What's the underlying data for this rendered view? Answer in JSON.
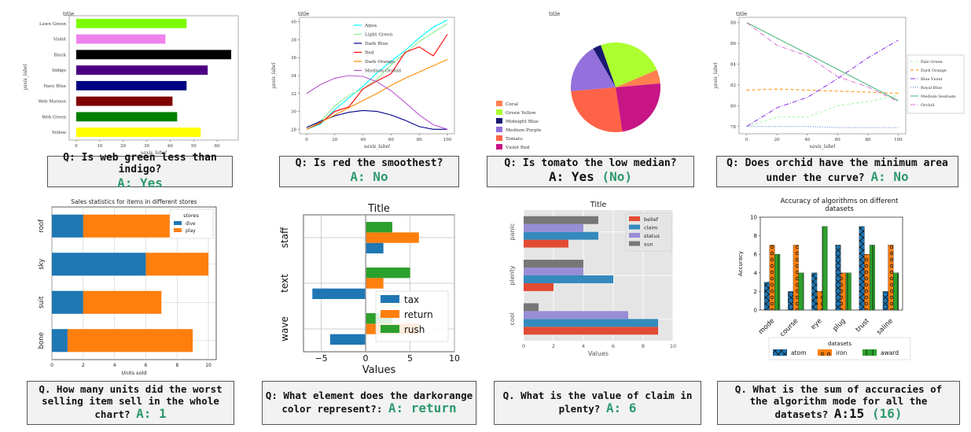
{
  "questions": [
    {
      "q": "Q: Is web green less than indigo?",
      "a": "A: Yes",
      "correction": ""
    },
    {
      "q": "Q: Is red the smoothest?",
      "a": "A: No",
      "correction": ""
    },
    {
      "q": "Q: Is tomato the low median?",
      "a": "A: Yes",
      "correction": "(No)"
    },
    {
      "q": "Q: Does orchid have the minimum area under the curve?",
      "q1": "Q: Does orchid have the minimum area",
      "q2": "under the curve?",
      "a": "A: No",
      "correction": ""
    },
    {
      "q1": "Q. How many units did the worst",
      "q2": "selling item sell in the whole",
      "q3": "chart?",
      "a": "A: 1",
      "correction": ""
    },
    {
      "q1": "Q:  What element does the darkorange",
      "q2": "color represent?:",
      "a": "A: return",
      "correction": ""
    },
    {
      "q1": "Q. What is the value of claim in",
      "q2": "plenty?",
      "a": "A: 6",
      "correction": ""
    },
    {
      "q1": "Q. What is the sum of accuracies of",
      "q2": "the algorithm mode for all the",
      "q3": "datasets?",
      "a": "A:15",
      "correction": "(16)"
    }
  ],
  "chart_data": [
    {
      "type": "bar",
      "orientation": "horizontal",
      "title": "title",
      "xlabel": "xaxis_label",
      "ylabel": "yaxis_label",
      "categories": [
        "Lawn Green",
        "Violet",
        "Black",
        "Indigo",
        "Navy Blue",
        "Web Maroon",
        "Web Green",
        "Yellow"
      ],
      "values": [
        47,
        38,
        66,
        56,
        47,
        41,
        43,
        53
      ],
      "colors": [
        "#7cfc00",
        "#ee82ee",
        "#000000",
        "#4b0082",
        "#000080",
        "#800000",
        "#008000",
        "#ffff00"
      ],
      "xlim": [
        -3,
        69
      ],
      "xticks": [
        "0",
        "10",
        "20",
        "30",
        "40",
        "50",
        "60"
      ]
    },
    {
      "type": "line",
      "title": "title",
      "xlabel": "xaxis_label",
      "ylabel": "yaxis_label",
      "x": [
        0,
        10,
        20,
        30,
        40,
        50,
        60,
        70,
        80,
        90,
        100
      ],
      "xlim": [
        -5,
        105
      ],
      "ylim": [
        27.5,
        40.5
      ],
      "xticks": [
        "0",
        "20",
        "40",
        "60",
        "80",
        "100"
      ],
      "yticks": [
        "28",
        "30",
        "32",
        "34",
        "36",
        "38",
        "40"
      ],
      "legend": "top-center",
      "series": [
        {
          "name": "Aqua",
          "color": "#00ffff",
          "values": [
            28,
            28.6,
            30.2,
            31.5,
            32.8,
            34.3,
            35.6,
            36.8,
            38.2,
            39.4,
            40.2
          ]
        },
        {
          "name": "Light Green",
          "color": "#90ee90",
          "values": [
            28.2,
            28.9,
            30.6,
            31.8,
            32.5,
            33.6,
            35.2,
            36.5,
            37.8,
            38.8,
            39.8
          ]
        },
        {
          "name": "Dark Blue",
          "color": "#00008b",
          "values": [
            28.2,
            28.9,
            29.5,
            29.9,
            30.1,
            30.0,
            29.6,
            29.0,
            28.3,
            28.0,
            28.0
          ]
        },
        {
          "name": "Red",
          "color": "#ff0000",
          "values": [
            28.0,
            28.7,
            30.0,
            30.5,
            32.5,
            33.4,
            34.2,
            36.6,
            37.2,
            36.2,
            38.6
          ]
        },
        {
          "name": "Dark Orange",
          "color": "#ff8c00",
          "values": [
            28.0,
            28.8,
            29.6,
            30.4,
            31.2,
            32.0,
            32.9,
            33.7,
            34.4,
            35.1,
            35.8
          ]
        },
        {
          "name": "Medium Orchid",
          "color": "#ba55d3",
          "values": [
            32.0,
            33.0,
            33.7,
            34.0,
            33.9,
            33.3,
            32.3,
            31.0,
            29.6,
            28.5,
            28.0
          ]
        }
      ]
    },
    {
      "type": "pie",
      "title": "title",
      "legend": "left",
      "labels": [
        "Coral",
        "Green Yellow",
        "Midnight Blue",
        "Medium Purple",
        "Tomato",
        "Violet Red"
      ],
      "values": [
        5,
        24,
        3,
        18,
        26,
        24
      ],
      "colors": [
        "#ff7f50",
        "#adff2f",
        "#191970",
        "#9370db",
        "#ff6347",
        "#c71585"
      ]
    },
    {
      "type": "line",
      "title": "title",
      "xlabel": "xaxis_label",
      "ylabel": "yaxis_label",
      "x": [
        0,
        20,
        40,
        60,
        80,
        100
      ],
      "xlim": [
        -5,
        105
      ],
      "ylim": [
        77.3,
        88.5
      ],
      "xticks": [
        "0",
        "20",
        "40",
        "60",
        "80",
        "100"
      ],
      "yticks": [
        "78",
        "80",
        "82",
        "84",
        "86",
        "88"
      ],
      "legend": "right",
      "series": [
        {
          "name": "Pale Green",
          "color": "#98fb98",
          "dash": "3,3",
          "values": [
            78.0,
            78.9,
            78.9,
            80.0,
            80.4,
            81.0
          ]
        },
        {
          "name": "Dark Orange",
          "color": "#ff8c00",
          "dash": "4,3",
          "values": [
            81.5,
            81.6,
            81.5,
            81.4,
            81.3,
            81.2
          ]
        },
        {
          "name": "Blue Violet",
          "color": "#8a2be2",
          "dash": "6,2,1,2",
          "values": [
            78.0,
            79.8,
            80.8,
            82.6,
            84.6,
            86.3
          ]
        },
        {
          "name": "Royal Blue",
          "color": "#4169e1",
          "dash": "1,2",
          "values": [
            78.0,
            78.0,
            78.0,
            77.9,
            77.9,
            77.9
          ]
        },
        {
          "name": "Medium Seafoam",
          "color": "#3cb371",
          "dash": "",
          "values": [
            88.0,
            86.5,
            85.0,
            83.5,
            82.0,
            80.5
          ]
        },
        {
          "name": "Orchid",
          "color": "#da70d6",
          "dash": "6,2,1,2",
          "values": [
            88.0,
            85.8,
            84.8,
            82.8,
            81.8,
            80.4
          ]
        }
      ]
    },
    {
      "type": "bar",
      "orientation": "horizontal",
      "stacked": true,
      "title": "Sales statistics for items in different stores",
      "xlabel": "Units sold",
      "ylabel": "",
      "categories": [
        "roof",
        "sky",
        "suit",
        "bone"
      ],
      "legend_title": "stores",
      "series": [
        {
          "name": "dive",
          "color": "#1f77b4",
          "values": [
            2,
            6,
            2,
            1
          ]
        },
        {
          "name": "play",
          "color": "#ff7f0e",
          "values": [
            6,
            4,
            5,
            8
          ]
        }
      ],
      "xlim": [
        0,
        10.5
      ],
      "xticks": [
        "0",
        "2",
        "4",
        "6",
        "8",
        "10"
      ]
    },
    {
      "type": "bar",
      "orientation": "horizontal",
      "title": "Title",
      "xlabel": "Values",
      "ylabel": "",
      "categories": [
        "staff",
        "text",
        "wave"
      ],
      "series": [
        {
          "name": "tax",
          "color": "#1f77b4",
          "values": [
            2,
            -6,
            -4
          ]
        },
        {
          "name": "return",
          "color": "#ff7f0e",
          "values": [
            6,
            2,
            6
          ]
        },
        {
          "name": "rush",
          "color": "#2ca02c",
          "values": [
            3,
            5,
            3
          ]
        }
      ],
      "xlim": [
        -7,
        10
      ],
      "xticks": [
        "−5",
        "0",
        "5",
        "10"
      ],
      "legend": "lower-right"
    },
    {
      "type": "bar",
      "orientation": "horizontal",
      "title": "Title",
      "xlabel": "Values",
      "ylabel": "",
      "categories": [
        "panic",
        "plenty",
        "cool"
      ],
      "series": [
        {
          "name": "belief",
          "color": "#e24a33",
          "values": [
            3,
            2,
            9
          ]
        },
        {
          "name": "claim",
          "color": "#348abd",
          "values": [
            5,
            6,
            9
          ]
        },
        {
          "name": "status",
          "color": "#988ed5",
          "values": [
            4,
            4,
            7
          ]
        },
        {
          "name": "sun",
          "color": "#777777",
          "values": [
            5,
            4,
            1
          ]
        }
      ],
      "xlim": [
        0,
        10
      ],
      "xticks": [
        "0",
        "2",
        "4",
        "6",
        "8",
        "10"
      ],
      "legend": "top-right"
    },
    {
      "type": "bar",
      "title": "Accuracy of algorithms on different datasets",
      "title_lines": [
        "Accuracy of algorithms on different",
        "datasets"
      ],
      "xlabel": "",
      "ylabel": "Accuracy",
      "categories": [
        "mode",
        "course",
        "eye",
        "plug",
        "trust",
        "saline"
      ],
      "legend_title": "datasets",
      "legend": "bottom",
      "series": [
        {
          "name": "atom",
          "color": "#1f77b4",
          "hatch": "x",
          "values": [
            3,
            2,
            4,
            7,
            9,
            2
          ]
        },
        {
          "name": "iron",
          "color": "#ff7f0e",
          "hatch": "o",
          "values": [
            7,
            7,
            2,
            4,
            6,
            7
          ]
        },
        {
          "name": "award",
          "color": "#2ca02c",
          "hatch": "+",
          "values": [
            6,
            4,
            9,
            4,
            7,
            4
          ]
        }
      ],
      "ylim": [
        0,
        10
      ],
      "yticks": [
        "0",
        "2",
        "4",
        "6",
        "8",
        "10"
      ]
    }
  ]
}
